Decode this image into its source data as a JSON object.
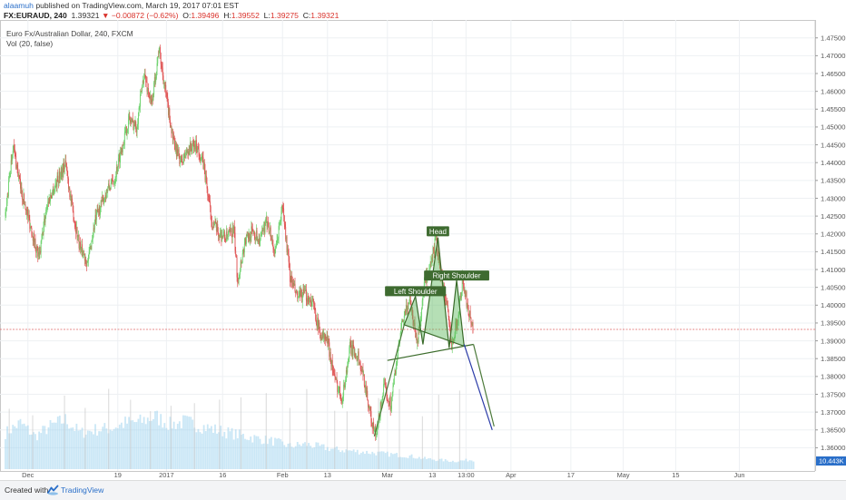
{
  "header": {
    "user": "alaamuh",
    "published": " published on TradingView.com, March 19, 2017 07:01 EST",
    "symbol": "FX:EURAUD, 240",
    "last": "1.39321",
    "change": "−0.00872 (−0.62%)",
    "o_label": "O:",
    "o_value": "1.39496",
    "h_label": "H:",
    "h_value": "1.39552",
    "l_label": "L:",
    "l_value": "1.39275",
    "c_label": "C:",
    "c_value": "1.39321"
  },
  "legend": {
    "title": "Euro Fx/Australian Dollar, 240, FXCM",
    "vol": "Vol (20, false)"
  },
  "footer": {
    "created": "Created with",
    "brand": "TradingView"
  },
  "chart_data": {
    "type": "candlestick",
    "instrument": "EURAUD",
    "timeframe": "240",
    "y_axis": {
      "range": [
        1.3545,
        1.4785
      ],
      "ticks": [
        "1.47500",
        "1.47000",
        "1.46500",
        "1.46000",
        "1.45500",
        "1.45000",
        "1.44500",
        "1.44000",
        "1.43500",
        "1.43000",
        "1.42500",
        "1.42000",
        "1.41500",
        "1.41000",
        "1.40500",
        "1.40000",
        "1.39500",
        "1.39000",
        "1.38500",
        "1.38000",
        "1.37500",
        "1.37000",
        "1.36500",
        "1.36000"
      ],
      "last_price": 1.39321,
      "volume_label": "10.443K"
    },
    "x_axis": {
      "ticks": [
        {
          "label": "Dec",
          "day": -23
        },
        {
          "label": "19",
          "day": 1
        },
        {
          "label": "2017",
          "day": 14
        },
        {
          "label": "16",
          "day": 29
        },
        {
          "label": "Feb",
          "day": 45
        },
        {
          "label": "13",
          "day": 57
        },
        {
          "label": "Mar",
          "day": 73
        },
        {
          "label": "13",
          "day": 85
        },
        {
          "label": "13:00",
          "day": 94
        },
        {
          "label": "Apr",
          "day": 106
        },
        {
          "label": "17",
          "day": 122
        },
        {
          "label": "May",
          "day": 136
        },
        {
          "label": "15",
          "day": 150
        },
        {
          "label": "Jun",
          "day": 167
        }
      ]
    },
    "price_path": [
      [
        -29,
        1.425
      ],
      [
        -27,
        1.445
      ],
      [
        -25,
        1.433
      ],
      [
        -22,
        1.421
      ],
      [
        -20,
        1.413
      ],
      [
        -18,
        1.428
      ],
      [
        -16,
        1.433
      ],
      [
        -13,
        1.44
      ],
      [
        -11,
        1.426
      ],
      [
        -9,
        1.416
      ],
      [
        -7,
        1.412
      ],
      [
        -5,
        1.424
      ],
      [
        -2,
        1.432
      ],
      [
        0,
        1.435
      ],
      [
        2,
        1.444
      ],
      [
        4,
        1.452
      ],
      [
        6,
        1.45
      ],
      [
        8,
        1.465
      ],
      [
        10,
        1.456
      ],
      [
        12,
        1.472
      ],
      [
        14,
        1.458
      ],
      [
        16,
        1.445
      ],
      [
        18,
        1.44
      ],
      [
        20,
        1.444
      ],
      [
        22,
        1.445
      ],
      [
        24,
        1.439
      ],
      [
        26,
        1.424
      ],
      [
        28,
        1.42
      ],
      [
        30,
        1.419
      ],
      [
        32,
        1.421
      ],
      [
        33,
        1.407
      ],
      [
        35,
        1.418
      ],
      [
        37,
        1.421
      ],
      [
        39,
        1.418
      ],
      [
        41,
        1.424
      ],
      [
        43,
        1.414
      ],
      [
        45,
        1.428
      ],
      [
        47,
        1.408
      ],
      [
        49,
        1.402
      ],
      [
        51,
        1.403
      ],
      [
        53,
        1.401
      ],
      [
        55,
        1.392
      ],
      [
        57,
        1.39
      ],
      [
        59,
        1.379
      ],
      [
        61,
        1.374
      ],
      [
        63,
        1.388
      ],
      [
        65,
        1.386
      ],
      [
        67,
        1.378
      ],
      [
        69,
        1.366
      ],
      [
        70,
        1.363
      ],
      [
        72,
        1.377
      ],
      [
        74,
        1.372
      ],
      [
        75,
        1.381
      ],
      [
        77,
        1.395
      ],
      [
        79,
        1.402
      ],
      [
        81,
        1.389
      ],
      [
        83,
        1.407
      ],
      [
        84,
        1.408
      ],
      [
        86,
        1.419
      ],
      [
        87,
        1.41
      ],
      [
        89,
        1.399
      ],
      [
        90,
        1.389
      ],
      [
        92,
        1.397
      ],
      [
        93,
        1.407
      ],
      [
        95,
        1.397
      ],
      [
        96,
        1.393
      ]
    ],
    "volume_profile": [
      [
        -29,
        0.55
      ],
      [
        -25,
        0.7
      ],
      [
        -21,
        0.5
      ],
      [
        -17,
        0.65
      ],
      [
        -13,
        0.75
      ],
      [
        -9,
        0.55
      ],
      [
        -5,
        0.6
      ],
      [
        -1,
        0.62
      ],
      [
        3,
        0.7
      ],
      [
        7,
        0.72
      ],
      [
        11,
        0.8
      ],
      [
        15,
        0.68
      ],
      [
        19,
        0.72
      ],
      [
        23,
        0.66
      ],
      [
        27,
        0.6
      ],
      [
        31,
        0.55
      ],
      [
        35,
        0.5
      ],
      [
        39,
        0.46
      ],
      [
        43,
        0.42
      ],
      [
        47,
        0.35
      ],
      [
        51,
        0.38
      ],
      [
        55,
        0.34
      ],
      [
        59,
        0.3
      ],
      [
        63,
        0.28
      ],
      [
        67,
        0.26
      ],
      [
        71,
        0.24
      ],
      [
        75,
        0.22
      ],
      [
        79,
        0.2
      ],
      [
        83,
        0.16
      ],
      [
        87,
        0.14
      ],
      [
        91,
        0.12
      ],
      [
        95,
        0.14
      ]
    ],
    "pattern": {
      "name": "head-and-shoulders",
      "points": [
        [
          77.5,
          1.3945
        ],
        [
          80.5,
          1.4025
        ],
        [
          82.5,
          1.389
        ],
        [
          86.5,
          1.419
        ],
        [
          89.5,
          1.388
        ],
        [
          91.5,
          1.407
        ],
        [
          93.5,
          1.3885
        ]
      ],
      "neckline": [
        [
          73,
          1.3845
        ],
        [
          96,
          1.389
        ]
      ],
      "labels": [
        {
          "text": "Left Shoulder",
          "day": 80.5,
          "price": 1.4038
        },
        {
          "text": "Head",
          "day": 86.5,
          "price": 1.4206
        },
        {
          "text": "Right Shoulder",
          "day": 91.5,
          "price": 1.4082
        }
      ]
    },
    "projection_lines": [
      {
        "from": [
          93.5,
          1.389
        ],
        "to": [
          101,
          1.365
        ],
        "color": "#2b3ca8"
      },
      {
        "from": [
          96,
          1.389
        ],
        "to": [
          101.5,
          1.366
        ],
        "color": "#4c7a3a"
      },
      {
        "from": [
          69.5,
          1.3632
        ],
        "to": [
          77.5,
          1.3945
        ],
        "color": "#4c7a3a"
      }
    ],
    "colors": {
      "up": "#6fd36f",
      "down": "#e05555",
      "volume": "#9fd4ee",
      "pattern_fill": "#5cb85c",
      "pattern_stroke": "#3a6b2a",
      "last_price_line": "#e06666",
      "label_bg": "#3e6b30"
    }
  }
}
